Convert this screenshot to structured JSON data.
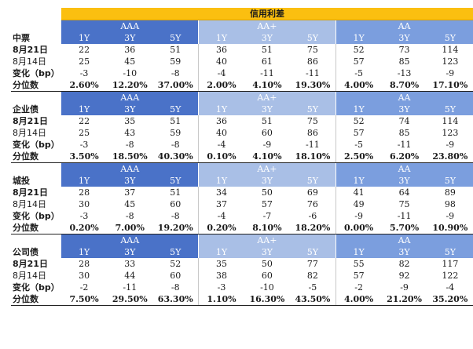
{
  "title": "信用利差",
  "rows": {
    "d1": "8月21日",
    "d2": "8月14日",
    "chg": "变化（bp）",
    "pct": "分位数"
  },
  "groups": [
    "AAA",
    "AA+",
    "AA"
  ],
  "tenors": [
    "1Y",
    "3Y",
    "5Y"
  ],
  "sections": [
    {
      "name": "中票",
      "d1": [
        "22",
        "36",
        "51",
        "36",
        "51",
        "75",
        "52",
        "73",
        "114"
      ],
      "d2": [
        "25",
        "45",
        "59",
        "40",
        "61",
        "86",
        "57",
        "85",
        "123"
      ],
      "chg": [
        "-3",
        "-10",
        "-8",
        "-4",
        "-11",
        "-11",
        "-5",
        "-13",
        "-9"
      ],
      "pct": [
        "2.60%",
        "12.20%",
        "37.00%",
        "2.00%",
        "4.10%",
        "19.30%",
        "4.00%",
        "8.70%",
        "17.10%"
      ]
    },
    {
      "name": "企业债",
      "d1": [
        "22",
        "35",
        "51",
        "36",
        "51",
        "75",
        "52",
        "74",
        "114"
      ],
      "d2": [
        "25",
        "43",
        "59",
        "40",
        "60",
        "86",
        "57",
        "85",
        "123"
      ],
      "chg": [
        "-3",
        "-8",
        "-8",
        "-4",
        "-9",
        "-11",
        "-5",
        "-11",
        "-9"
      ],
      "pct": [
        "3.50%",
        "18.50%",
        "40.30%",
        "0.10%",
        "4.10%",
        "18.10%",
        "2.50%",
        "6.20%",
        "23.80%"
      ]
    },
    {
      "name": "城投",
      "d1": [
        "28",
        "37",
        "51",
        "34",
        "50",
        "69",
        "41",
        "64",
        "89"
      ],
      "d2": [
        "30",
        "45",
        "60",
        "37",
        "57",
        "76",
        "49",
        "75",
        "98"
      ],
      "chg": [
        "-3",
        "-8",
        "-8",
        "-4",
        "-7",
        "-6",
        "-9",
        "-11",
        "-9"
      ],
      "pct": [
        "0.20%",
        "7.00%",
        "19.20%",
        "0.20%",
        "8.10%",
        "18.20%",
        "0.00%",
        "5.70%",
        "10.90%"
      ]
    },
    {
      "name": "公司债",
      "d1": [
        "28",
        "33",
        "52",
        "35",
        "50",
        "77",
        "55",
        "82",
        "117"
      ],
      "d2": [
        "30",
        "44",
        "60",
        "38",
        "60",
        "82",
        "57",
        "92",
        "122"
      ],
      "chg": [
        "-2",
        "-11",
        "-8",
        "-3",
        "-10",
        "-5",
        "-2",
        "-9",
        "-4"
      ],
      "pct": [
        "7.50%",
        "29.50%",
        "63.30%",
        "1.10%",
        "16.30%",
        "43.50%",
        "4.00%",
        "21.20%",
        "35.20%"
      ]
    }
  ]
}
